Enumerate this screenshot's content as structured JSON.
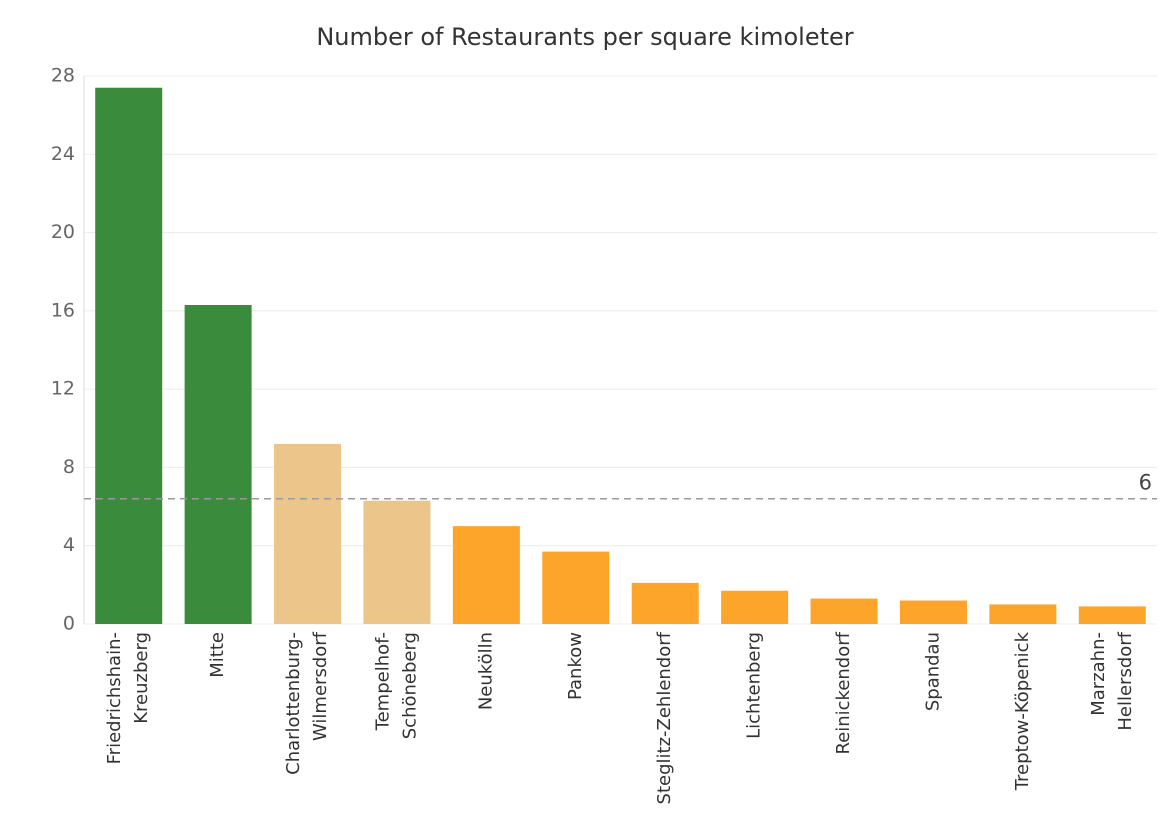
{
  "chart_data": {
    "type": "bar",
    "title": "Number of Restaurants per square kimoleter",
    "xlabel": "",
    "ylabel": "",
    "ylim": [
      0,
      28
    ],
    "yticks": [
      0,
      4,
      8,
      12,
      16,
      20,
      24,
      28
    ],
    "grid": true,
    "categories": [
      [
        "Friedrichshain-",
        "Kreuzberg"
      ],
      [
        "Mitte"
      ],
      [
        "Charlottenburg-",
        "Wilmersdorf"
      ],
      [
        "Tempelhof-",
        "Schöneberg"
      ],
      [
        "Neukölln"
      ],
      [
        "Pankow"
      ],
      [
        "Steglitz-Zehlendorf"
      ],
      [
        "Lichtenberg"
      ],
      [
        "Reinickendorf"
      ],
      [
        "Spandau"
      ],
      [
        "Treptow-Köpenick"
      ],
      [
        "Marzahn-",
        "Hellersdorf"
      ]
    ],
    "values": [
      27.4,
      16.3,
      9.2,
      6.3,
      5.0,
      3.7,
      2.1,
      1.7,
      1.3,
      1.2,
      1.0,
      0.9
    ],
    "colors": [
      "#3a8c3c",
      "#3a8c3c",
      "#ebc589",
      "#ebc589",
      "#fda52b",
      "#fda52b",
      "#fda52b",
      "#fda52b",
      "#fda52b",
      "#fda52b",
      "#fda52b",
      "#fda52b"
    ],
    "reference_line": {
      "value": 6.4,
      "label": "6",
      "color": "#9a9a9a"
    }
  }
}
